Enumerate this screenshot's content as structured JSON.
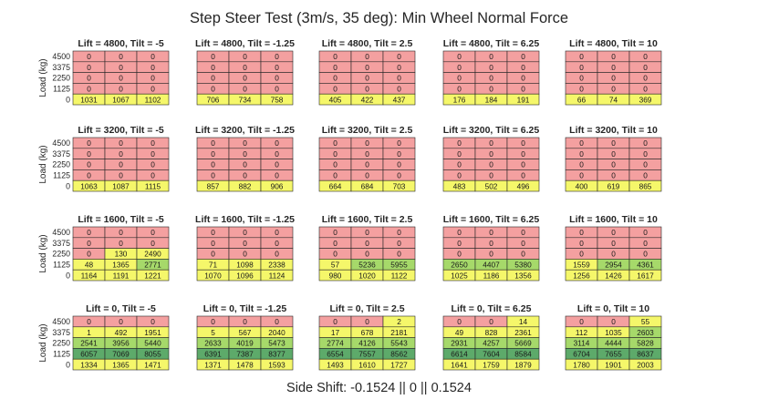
{
  "chart_data": {
    "type": "heatmap",
    "title": "Step Steer Test (3m/s, 35 deg): Min Wheel Normal Force",
    "xlabel": "Side Shift: -0.1524 || 0 || 0.1524",
    "ylabel": "Load (kg)",
    "x_categories": [
      "-0.1524",
      "0",
      "0.1524"
    ],
    "y_tick_labels": [
      "4500",
      "3375",
      "2250",
      "1125",
      "0"
    ],
    "color_scale": {
      "zero": "#f4a0a0",
      "low": "#f5f76a",
      "mid": "#a6d96a",
      "high": "#5daa6a"
    },
    "panels": [
      {
        "title": "Lift = 4800, Tilt = -5",
        "values": [
          [
            0,
            0,
            0
          ],
          [
            0,
            0,
            0
          ],
          [
            0,
            0,
            0
          ],
          [
            0,
            0,
            0
          ],
          [
            1031,
            1067,
            1102
          ]
        ]
      },
      {
        "title": "Lift = 4800, Tilt = -1.25",
        "values": [
          [
            0,
            0,
            0
          ],
          [
            0,
            0,
            0
          ],
          [
            0,
            0,
            0
          ],
          [
            0,
            0,
            0
          ],
          [
            706,
            734,
            758
          ]
        ]
      },
      {
        "title": "Lift = 4800, Tilt = 2.5",
        "values": [
          [
            0,
            0,
            0
          ],
          [
            0,
            0,
            0
          ],
          [
            0,
            0,
            0
          ],
          [
            0,
            0,
            0
          ],
          [
            405,
            422,
            437
          ]
        ]
      },
      {
        "title": "Lift = 4800, Tilt = 6.25",
        "values": [
          [
            0,
            0,
            0
          ],
          [
            0,
            0,
            0
          ],
          [
            0,
            0,
            0
          ],
          [
            0,
            0,
            0
          ],
          [
            176,
            184,
            191
          ]
        ]
      },
      {
        "title": "Lift = 4800, Tilt = 10",
        "values": [
          [
            0,
            0,
            0
          ],
          [
            0,
            0,
            0
          ],
          [
            0,
            0,
            0
          ],
          [
            0,
            0,
            0
          ],
          [
            66,
            74,
            369
          ]
        ]
      },
      {
        "title": "Lift = 3200, Tilt = -5",
        "values": [
          [
            0,
            0,
            0
          ],
          [
            0,
            0,
            0
          ],
          [
            0,
            0,
            0
          ],
          [
            0,
            0,
            0
          ],
          [
            1063,
            1087,
            1115
          ]
        ]
      },
      {
        "title": "Lift = 3200, Tilt = -1.25",
        "values": [
          [
            0,
            0,
            0
          ],
          [
            0,
            0,
            0
          ],
          [
            0,
            0,
            0
          ],
          [
            0,
            0,
            0
          ],
          [
            857,
            882,
            906
          ]
        ]
      },
      {
        "title": "Lift = 3200, Tilt = 2.5",
        "values": [
          [
            0,
            0,
            0
          ],
          [
            0,
            0,
            0
          ],
          [
            0,
            0,
            0
          ],
          [
            0,
            0,
            0
          ],
          [
            664,
            684,
            703
          ]
        ]
      },
      {
        "title": "Lift = 3200, Tilt = 6.25",
        "values": [
          [
            0,
            0,
            0
          ],
          [
            0,
            0,
            0
          ],
          [
            0,
            0,
            0
          ],
          [
            0,
            0,
            0
          ],
          [
            483,
            502,
            496
          ]
        ]
      },
      {
        "title": "Lift = 3200, Tilt = 10",
        "values": [
          [
            0,
            0,
            0
          ],
          [
            0,
            0,
            0
          ],
          [
            0,
            0,
            0
          ],
          [
            0,
            0,
            0
          ],
          [
            400,
            619,
            865
          ]
        ]
      },
      {
        "title": "Lift = 1600, Tilt = -5",
        "values": [
          [
            0,
            0,
            0
          ],
          [
            0,
            0,
            0
          ],
          [
            0,
            130,
            2490
          ],
          [
            48,
            1365,
            2771
          ],
          [
            1164,
            1191,
            1221
          ]
        ]
      },
      {
        "title": "Lift = 1600, Tilt = -1.25",
        "values": [
          [
            0,
            0,
            0
          ],
          [
            0,
            0,
            0
          ],
          [
            0,
            0,
            0
          ],
          [
            71,
            1098,
            2338
          ],
          [
            1070,
            1096,
            1124
          ]
        ]
      },
      {
        "title": "Lift = 1600, Tilt = 2.5",
        "values": [
          [
            0,
            0,
            0
          ],
          [
            0,
            0,
            0
          ],
          [
            0,
            0,
            0
          ],
          [
            57,
            5236,
            5955
          ],
          [
            980,
            1020,
            1122
          ]
        ]
      },
      {
        "title": "Lift = 1600, Tilt = 6.25",
        "values": [
          [
            0,
            0,
            0
          ],
          [
            0,
            0,
            0
          ],
          [
            0,
            0,
            0
          ],
          [
            2650,
            4407,
            5380
          ],
          [
            1025,
            1186,
            1356
          ]
        ]
      },
      {
        "title": "Lift = 1600, Tilt = 10",
        "values": [
          [
            0,
            0,
            0
          ],
          [
            0,
            0,
            0
          ],
          [
            0,
            0,
            0
          ],
          [
            1559,
            2954,
            4361
          ],
          [
            1256,
            1426,
            1617
          ]
        ]
      },
      {
        "title": "Lift = 0, Tilt = -5",
        "values": [
          [
            0,
            0,
            0
          ],
          [
            1,
            492,
            1951
          ],
          [
            2541,
            3956,
            5440
          ],
          [
            6057,
            7069,
            8055
          ],
          [
            1334,
            1365,
            1471
          ]
        ]
      },
      {
        "title": "Lift = 0, Tilt = -1.25",
        "values": [
          [
            0,
            0,
            0
          ],
          [
            5,
            567,
            2040
          ],
          [
            2633,
            4019,
            5473
          ],
          [
            6391,
            7387,
            8377
          ],
          [
            1371,
            1478,
            1593
          ]
        ]
      },
      {
        "title": "Lift = 0, Tilt = 2.5",
        "values": [
          [
            0,
            0,
            2
          ],
          [
            17,
            678,
            2181
          ],
          [
            2774,
            4126,
            5543
          ],
          [
            6554,
            7557,
            8562
          ],
          [
            1493,
            1610,
            1727
          ]
        ]
      },
      {
        "title": "Lift = 0, Tilt = 6.25",
        "values": [
          [
            0,
            0,
            14
          ],
          [
            49,
            828,
            2361
          ],
          [
            2931,
            4257,
            5669
          ],
          [
            6614,
            7604,
            8584
          ],
          [
            1641,
            1759,
            1879
          ]
        ]
      },
      {
        "title": "Lift = 0, Tilt = 10",
        "values": [
          [
            0,
            0,
            55
          ],
          [
            112,
            1035,
            2603
          ],
          [
            3114,
            4444,
            5828
          ],
          [
            6704,
            7655,
            8637
          ],
          [
            1780,
            1901,
            2003
          ]
        ]
      }
    ]
  }
}
